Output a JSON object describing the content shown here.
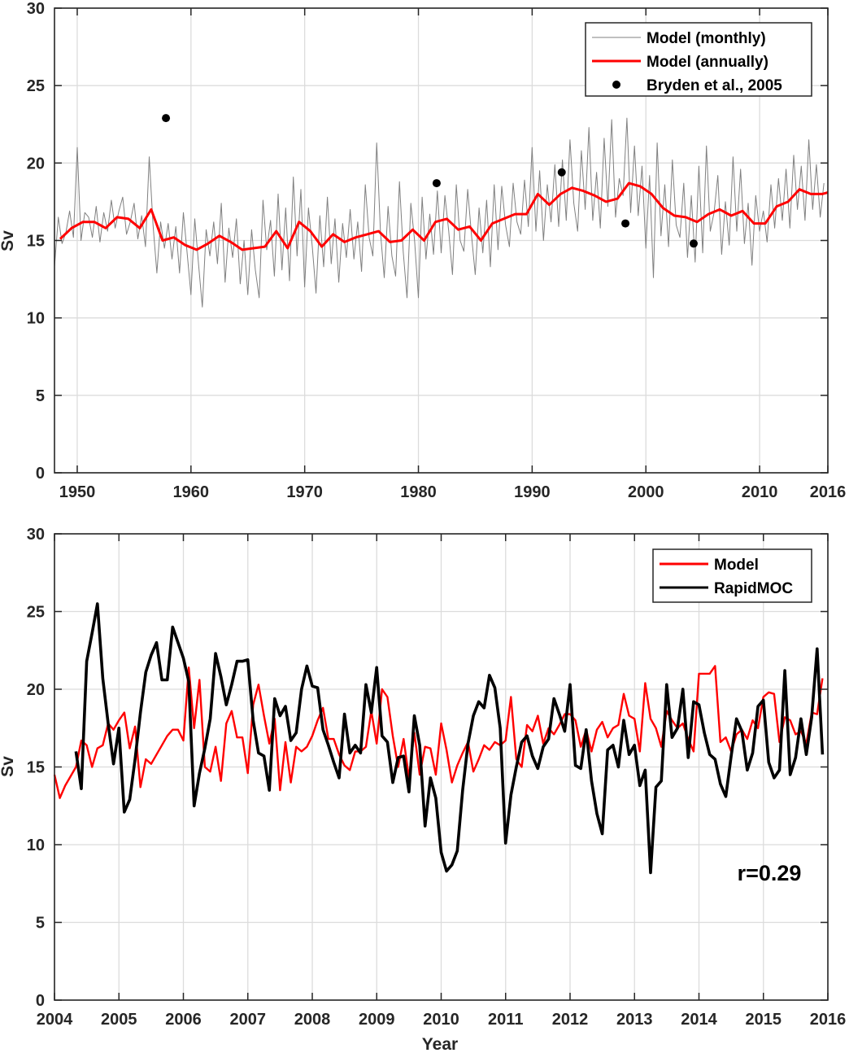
{
  "chart_data": [
    {
      "type": "line",
      "title": "",
      "xlabel": "",
      "ylabel": "Sv",
      "xlim": [
        1948,
        2016
      ],
      "ylim": [
        0,
        30
      ],
      "xticks": [
        "1950",
        "1960",
        "1970",
        "1980",
        "1990",
        "2000",
        "2010",
        "2016"
      ],
      "xtick_values": [
        1950,
        1960,
        1970,
        1980,
        1990,
        2000,
        2010,
        2016
      ],
      "yticks": [
        "0",
        "5",
        "10",
        "15",
        "20",
        "25",
        "30"
      ],
      "grid": true,
      "legend_position": "top-right",
      "series": [
        {
          "name": "Model (monthly)",
          "color": "#808080",
          "style": "line",
          "x_start": 1948,
          "x_step": 0.3333,
          "values": [
            13.3,
            16.5,
            14.8,
            15.5,
            16.9,
            15.2,
            21.0,
            15.0,
            16.8,
            16.5,
            15.2,
            17.2,
            14.9,
            16.8,
            15.6,
            17.6,
            15.8,
            16.9,
            17.8,
            15.4,
            16.2,
            17.4,
            15.1,
            16.6,
            14.6,
            20.4,
            16.0,
            12.9,
            16.2,
            14.5,
            16.1,
            13.8,
            15.9,
            12.9,
            16.8,
            14.2,
            11.5,
            16.4,
            13.5,
            10.7,
            15.7,
            14.0,
            16.2,
            13.5,
            17.4,
            12.3,
            15.8,
            13.9,
            16.4,
            12.2,
            15.0,
            11.5,
            15.7,
            13.1,
            11.3,
            17.6,
            14.4,
            16.3,
            12.7,
            18.0,
            13.1,
            17.1,
            12.4,
            19.1,
            14.0,
            18.3,
            12.0,
            17.1,
            14.6,
            11.6,
            16.6,
            13.3,
            17.8,
            13.5,
            16.4,
            12.3,
            16.1,
            13.9,
            17.0,
            13.8,
            16.2,
            13.0,
            18.6,
            15.2,
            14.0,
            21.3,
            15.5,
            12.6,
            17.2,
            14.0,
            12.7,
            18.8,
            14.3,
            11.3,
            17.4,
            15.0,
            11.3,
            17.8,
            13.8,
            16.7,
            14.1,
            18.2,
            14.2,
            17.9,
            15.6,
            12.8,
            18.6,
            15.0,
            14.3,
            18.3,
            15.4,
            12.8,
            17.1,
            14.2,
            17.6,
            13.3,
            18.6,
            14.4,
            18.5,
            16.0,
            14.6,
            18.7,
            16.2,
            15.4,
            18.9,
            15.9,
            21.0,
            15.6,
            19.5,
            15.0,
            18.6,
            16.2,
            19.9,
            15.9,
            20.2,
            16.3,
            21.5,
            17.4,
            15.6,
            20.8,
            17.0,
            22.3,
            16.3,
            19.4,
            15.8,
            21.6,
            17.2,
            22.8,
            16.5,
            19.0,
            17.9,
            22.9,
            16.8,
            21.1,
            16.6,
            19.8,
            14.5,
            19.2,
            12.6,
            21.3,
            15.3,
            18.6,
            14.6,
            20.2,
            16.0,
            15.2,
            18.7,
            13.9,
            17.9,
            13.6,
            19.8,
            14.2,
            21.1,
            15.6,
            16.8,
            19.2,
            14.1,
            17.5,
            14.7,
            20.4,
            15.6,
            19.6,
            14.8,
            17.4,
            13.4,
            17.9,
            15.6,
            16.9,
            14.9,
            18.6,
            15.8,
            19.0,
            16.3,
            19.6,
            15.8,
            20.5,
            17.0,
            19.8,
            16.3,
            21.5,
            17.0,
            19.9,
            16.5,
            18.7
          ]
        },
        {
          "name": "Model (annually)",
          "color": "#ff0000",
          "style": "line",
          "x": [
            1948.5,
            1949.5,
            1950.5,
            1951.5,
            1952.5,
            1953.5,
            1954.5,
            1955.5,
            1956.5,
            1957.5,
            1958.5,
            1959.5,
            1960.5,
            1961.5,
            1962.5,
            1963.5,
            1964.5,
            1965.5,
            1966.5,
            1967.5,
            1968.5,
            1969.5,
            1970.5,
            1971.5,
            1972.5,
            1973.5,
            1974.5,
            1975.5,
            1976.5,
            1977.5,
            1978.5,
            1979.5,
            1980.5,
            1981.5,
            1982.5,
            1983.5,
            1984.5,
            1985.5,
            1986.5,
            1987.5,
            1988.5,
            1989.5,
            1990.5,
            1991.5,
            1992.5,
            1993.5,
            1994.5,
            1995.5,
            1996.5,
            1997.5,
            1998.5,
            1999.5,
            2000.5,
            2001.5,
            2002.5,
            2003.5,
            2004.5,
            2005.5,
            2006.5,
            2007.5,
            2008.5,
            2009.5,
            2010.5,
            2011.5,
            2012.5,
            2013.5,
            2014.5,
            2015.5,
            2016
          ],
          "values": [
            15.1,
            15.8,
            16.2,
            16.2,
            15.8,
            16.5,
            16.4,
            15.8,
            17.0,
            15.0,
            15.2,
            14.7,
            14.4,
            14.8,
            15.3,
            14.9,
            14.4,
            14.5,
            14.6,
            15.6,
            14.5,
            16.2,
            15.6,
            14.6,
            15.4,
            14.9,
            15.2,
            15.4,
            15.6,
            14.9,
            15.0,
            15.7,
            15.0,
            16.2,
            16.4,
            15.7,
            15.9,
            15.0,
            16.1,
            16.4,
            16.7,
            16.7,
            18.0,
            17.3,
            18.0,
            18.4,
            18.2,
            17.9,
            17.5,
            17.7,
            18.7,
            18.5,
            18.0,
            17.1,
            16.6,
            16.5,
            16.2,
            16.7,
            17.0,
            16.6,
            16.9,
            16.1,
            16.1,
            17.2,
            17.5,
            18.3,
            18.0,
            18.0,
            18.1
          ]
        },
        {
          "name": "Bryden et al.,  2005",
          "color": "#000000",
          "style": "marker",
          "x": [
            1957.8,
            1981.6,
            1992.6,
            1998.2,
            2004.2
          ],
          "values": [
            22.9,
            18.7,
            19.4,
            16.1,
            14.8
          ]
        }
      ]
    },
    {
      "type": "line",
      "title": "",
      "xlabel": "Year",
      "ylabel": "Sv",
      "xlim": [
        2004,
        2016
      ],
      "ylim": [
        0,
        30
      ],
      "xticks": [
        "2004",
        "2005",
        "2006",
        "2007",
        "2008",
        "2009",
        "2010",
        "2011",
        "2012",
        "2013",
        "2014",
        "2015",
        "2016"
      ],
      "xtick_values": [
        2004,
        2005,
        2006,
        2007,
        2008,
        2009,
        2010,
        2011,
        2012,
        2013,
        2014,
        2015,
        2016
      ],
      "yticks": [
        "0",
        "5",
        "10",
        "15",
        "20",
        "25",
        "30"
      ],
      "grid": true,
      "legend_position": "top-right",
      "annotation": "r=0.29",
      "series": [
        {
          "name": "Model",
          "color": "#ff0000",
          "style": "line",
          "x_start": 2004,
          "x_step": 0.08333,
          "values": [
            14.5,
            13.0,
            13.8,
            14.4,
            15.0,
            16.7,
            16.4,
            15.0,
            16.2,
            16.4,
            17.8,
            17.4,
            18.0,
            18.5,
            16.2,
            17.6,
            13.7,
            15.5,
            15.2,
            15.8,
            16.4,
            17.0,
            17.4,
            17.4,
            16.7,
            21.4,
            17.5,
            20.6,
            15.0,
            14.7,
            16.3,
            14.1,
            17.8,
            18.6,
            16.9,
            16.9,
            14.6,
            19.0,
            20.3,
            18.3,
            16.5,
            18.1,
            13.5,
            16.6,
            14.0,
            16.3,
            16.0,
            16.3,
            17.0,
            18.0,
            18.8,
            16.8,
            16.8,
            15.8,
            15.1,
            14.8,
            16.0,
            16.0,
            16.3,
            18.6,
            16.5,
            20.0,
            19.5,
            17.0,
            15.0,
            16.8,
            14.3,
            17.2,
            14.5,
            16.3,
            16.2,
            14.5,
            17.8,
            16.1,
            14.0,
            15.1,
            15.9,
            16.6,
            14.7,
            15.5,
            16.4,
            16.1,
            16.6,
            16.4,
            16.7,
            19.5,
            15.5,
            15.0,
            17.7,
            17.3,
            18.3,
            16.5,
            17.5,
            17.1,
            17.7,
            18.4,
            18.4,
            18.0,
            16.3,
            17.4,
            16.0,
            17.4,
            17.9,
            16.9,
            17.5,
            17.7,
            19.7,
            18.3,
            18.1,
            16.0,
            20.4,
            18.1,
            17.5,
            16.3,
            18.6,
            18.0,
            17.5,
            17.8,
            16.8,
            16.0,
            21.0,
            21.0,
            21.0,
            21.5,
            16.6,
            16.9,
            16.0,
            17.1,
            17.4,
            16.8,
            18.0,
            17.5,
            19.5,
            19.8,
            19.7,
            16.6,
            18.2,
            18.0,
            17.1,
            17.3,
            16.5,
            18.5,
            18.4,
            20.7
          ]
        },
        {
          "name": "RapidMOC",
          "color": "#000000",
          "style": "line",
          "x_start": 2004.3333,
          "x_step": 0.08333,
          "values": [
            16.0,
            13.6,
            21.8,
            23.6,
            25.5,
            20.7,
            17.8,
            15.2,
            17.5,
            12.1,
            12.9,
            15.5,
            18.5,
            21.1,
            22.2,
            23.0,
            20.6,
            20.6,
            24.0,
            23.0,
            22.0,
            20.5,
            12.5,
            14.6,
            16.2,
            18.1,
            22.3,
            20.8,
            19.0,
            20.3,
            21.8,
            21.8,
            21.9,
            18.0,
            15.9,
            15.7,
            13.5,
            19.4,
            18.3,
            18.9,
            16.7,
            17.2,
            20.0,
            21.5,
            20.2,
            20.1,
            17.4,
            16.4,
            15.3,
            14.3,
            18.4,
            15.9,
            16.4,
            15.9,
            20.3,
            18.5,
            21.4,
            17.0,
            16.6,
            14.0,
            15.6,
            15.7,
            13.4,
            18.3,
            16.4,
            11.2,
            14.3,
            13.0,
            9.5,
            8.3,
            8.7,
            9.6,
            13.5,
            16.5,
            18.3,
            19.2,
            18.8,
            20.9,
            20.1,
            17.5,
            10.1,
            13.2,
            15.0,
            16.6,
            17.0,
            15.7,
            14.9,
            16.3,
            16.8,
            19.4,
            18.4,
            17.3,
            20.3,
            15.1,
            14.9,
            17.4,
            14.1,
            12.0,
            10.7,
            16.1,
            16.4,
            15.0,
            18.0,
            15.8,
            16.4,
            13.8,
            14.8,
            8.2,
            13.7,
            14.1,
            20.3,
            16.9,
            17.5,
            20.0,
            15.6,
            19.2,
            19.0,
            17.2,
            15.8,
            15.5,
            13.9,
            13.1,
            15.7,
            18.1,
            17.3,
            14.8,
            15.9,
            18.9,
            19.3,
            15.3,
            14.3,
            14.8,
            21.2,
            14.5,
            15.6,
            18.1,
            15.8,
            18.2,
            22.6,
            15.8
          ]
        }
      ]
    }
  ]
}
